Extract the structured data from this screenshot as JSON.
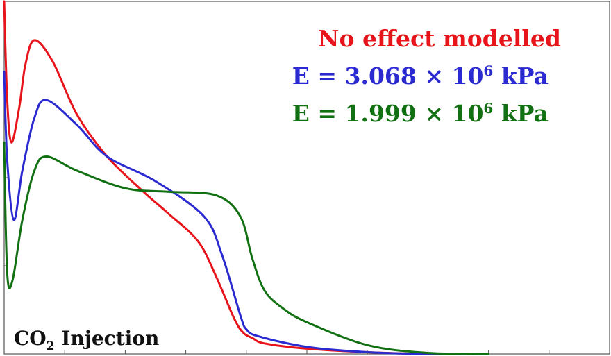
{
  "chart_data": {
    "type": "line",
    "title": "",
    "xlabel": "",
    "ylabel": "",
    "xlim": [
      0,
      10
    ],
    "ylim": [
      0,
      10
    ],
    "grid": false,
    "legend_position": "top-right",
    "annotation": {
      "main": "CO",
      "sub": "2",
      "rest": " Injection"
    },
    "series": [
      {
        "name": "No effect modelled",
        "legend": {
          "text": "No effect modelled"
        },
        "color": "#e8141b",
        "x": [
          0,
          0.05,
          0.12,
          0.25,
          0.35,
          0.5,
          0.8,
          1.2,
          1.7,
          2.3,
          2.7,
          3.2,
          3.5,
          3.8,
          3.95,
          4.1,
          4.3,
          5.0,
          6.0,
          7.0,
          8.0
        ],
        "y": [
          10,
          7.2,
          6.0,
          7.0,
          8.2,
          8.9,
          8.3,
          6.8,
          5.6,
          4.6,
          4.0,
          3.2,
          2.2,
          1.0,
          0.6,
          0.45,
          0.3,
          0.15,
          0.05,
          0.0,
          0.0
        ]
      },
      {
        "name": "E = 3.068 × 10^6 kPa",
        "legend": {
          "pre": "E = 3.068 × 10",
          "sup": "6",
          "post": " kPa"
        },
        "color": "#2a2ad0",
        "x": [
          0,
          0.05,
          0.16,
          0.3,
          0.5,
          0.7,
          1.2,
          1.7,
          2.5,
          3.3,
          3.6,
          3.9,
          4.0,
          4.2,
          5.0,
          6.0,
          7.0,
          8.0
        ],
        "y": [
          8.0,
          5.5,
          3.8,
          5.2,
          6.7,
          7.2,
          6.5,
          5.6,
          4.9,
          3.9,
          2.8,
          1.1,
          0.7,
          0.5,
          0.2,
          0.05,
          0.0,
          0.0
        ]
      },
      {
        "name": "E = 1.999 × 10^6 kPa",
        "legend": {
          "pre": "E = 1.999 × 10",
          "sup": "6",
          "post": " kPa"
        },
        "color": "#117011",
        "x": [
          0,
          0.05,
          0.14,
          0.3,
          0.5,
          0.7,
          1.2,
          2.0,
          2.7,
          3.5,
          3.9,
          4.1,
          4.3,
          4.6,
          5.0,
          6.0,
          7.0,
          8.0
        ],
        "y": [
          6.0,
          2.3,
          2.1,
          3.8,
          5.2,
          5.6,
          5.2,
          4.7,
          4.6,
          4.5,
          3.9,
          2.7,
          1.8,
          1.3,
          0.9,
          0.25,
          0.03,
          0.0
        ]
      }
    ]
  }
}
